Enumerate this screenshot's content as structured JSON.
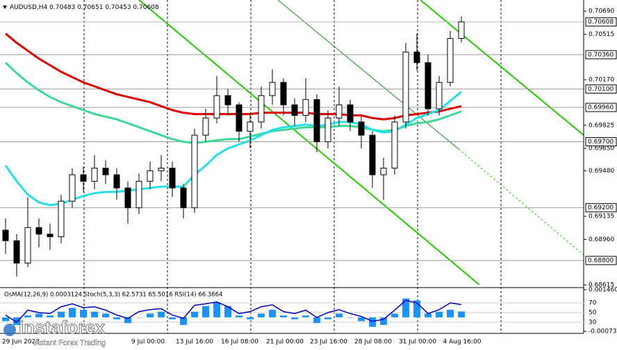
{
  "chart_data": {
    "type": "candlestick",
    "title": "AUDUSD,H4",
    "open": [
      0.6903,
      0.6895,
      0.6878,
      0.6905,
      0.69,
      0.6898,
      0.6925,
      0.6945,
      0.694,
      0.695,
      0.6945,
      0.6935,
      0.692,
      0.694,
      0.6948,
      0.695,
      0.6935,
      0.692,
      0.6975,
      0.6988,
      0.7005,
      0.6998,
      0.6978,
      0.6985,
      0.7005,
      0.7015,
      0.6998,
      0.699,
      0.7002,
      0.697,
      0.6988,
      0.6998,
      0.6985,
      0.6975,
      0.6945,
      0.695,
      0.6985,
      0.7038,
      0.703,
      0.6995,
      0.7015,
      0.70483
    ],
    "high": [
      0.6912,
      0.69,
      0.6928,
      0.6912,
      0.6908,
      0.693,
      0.695,
      0.6951,
      0.696,
      0.6956,
      0.695,
      0.694,
      0.6946,
      0.6955,
      0.696,
      0.6955,
      0.6938,
      0.698,
      0.6995,
      0.702,
      0.701,
      0.7,
      0.6992,
      0.7012,
      0.7025,
      0.7018,
      0.7003,
      0.7018,
      0.7006,
      0.6994,
      0.7012,
      0.7002,
      0.699,
      0.6978,
      0.6958,
      0.699,
      0.7045,
      0.7052,
      0.7036,
      0.702,
      0.7054,
      0.70651
    ],
    "low": [
      0.6885,
      0.6868,
      0.6875,
      0.689,
      0.6888,
      0.6893,
      0.692,
      0.6932,
      0.6934,
      0.6938,
      0.6926,
      0.6908,
      0.6915,
      0.6934,
      0.694,
      0.6928,
      0.6912,
      0.6916,
      0.697,
      0.6984,
      0.699,
      0.697,
      0.6965,
      0.698,
      0.6998,
      0.699,
      0.6982,
      0.6985,
      0.6962,
      0.6965,
      0.6982,
      0.6978,
      0.6965,
      0.6935,
      0.6926,
      0.6945,
      0.698,
      0.7024,
      0.699,
      0.699,
      0.7012,
      0.70453
    ],
    "close": [
      0.6895,
      0.6878,
      0.6905,
      0.69,
      0.6898,
      0.6925,
      0.6945,
      0.694,
      0.695,
      0.6945,
      0.6935,
      0.692,
      0.694,
      0.6948,
      0.695,
      0.6935,
      0.692,
      0.6975,
      0.6988,
      0.7005,
      0.6998,
      0.6978,
      0.6985,
      0.7005,
      0.7015,
      0.6998,
      0.699,
      0.7002,
      0.697,
      0.6988,
      0.6998,
      0.6985,
      0.6975,
      0.6945,
      0.695,
      0.6985,
      0.7038,
      0.703,
      0.6995,
      0.7015,
      0.70483,
      0.70608
    ],
    "series": [
      {
        "color": "#e00000",
        "values": [
          0.7052,
          0.7045,
          0.7039,
          0.7033,
          0.7028,
          0.7023,
          0.7019,
          0.7015,
          0.7012,
          0.7009,
          0.7006,
          0.7004,
          0.7002,
          0.7,
          0.6997,
          0.6994,
          0.6992,
          0.6991,
          0.6991,
          0.6991,
          0.6991,
          0.6991,
          0.6991,
          0.6992,
          0.6992,
          0.6992,
          0.6992,
          0.6992,
          0.6991,
          0.6991,
          0.6991,
          0.699,
          0.699,
          0.6988,
          0.6987,
          0.6988,
          0.699,
          0.6991,
          0.6992,
          0.6993,
          0.6995,
          0.6997
        ]
      },
      {
        "color": "#3cd896",
        "values": [
          0.703,
          0.7022,
          0.7015,
          0.7009,
          0.7004,
          0.7,
          0.6997,
          0.6994,
          0.6991,
          0.6989,
          0.6987,
          0.6984,
          0.6981,
          0.6978,
          0.6975,
          0.6972,
          0.697,
          0.6969,
          0.697,
          0.6971,
          0.6972,
          0.6972,
          0.6974,
          0.6976,
          0.6978,
          0.6979,
          0.698,
          0.6981,
          0.6981,
          0.6981,
          0.6982,
          0.6982,
          0.6981,
          0.6979,
          0.6978,
          0.6979,
          0.6982,
          0.6984,
          0.6985,
          0.6987,
          0.699,
          0.6993
        ]
      },
      {
        "color": "#22e0e8",
        "values": [
          0.6952,
          0.694,
          0.693,
          0.6924,
          0.6922,
          0.6923,
          0.6926,
          0.6929,
          0.6931,
          0.6932,
          0.6932,
          0.6933,
          0.6934,
          0.6935,
          0.6936,
          0.6936,
          0.6936,
          0.6945,
          0.6952,
          0.696,
          0.6965,
          0.6968,
          0.6971,
          0.6975,
          0.6979,
          0.6981,
          0.6982,
          0.6983,
          0.6982,
          0.6983,
          0.6985,
          0.6985,
          0.6983,
          0.6979,
          0.6977,
          0.6978,
          0.6983,
          0.6988,
          0.6991,
          0.6994,
          0.7001,
          0.7008
        ]
      }
    ],
    "ylim": [
      0.68605,
      0.70743
    ],
    "yticks": [
      {
        "value": 0.7069,
        "label": "0.70690"
      },
      {
        "value": 0.70515,
        "label": "0.70515"
      },
      {
        "value": 0.7017,
        "label": "0.70170"
      },
      {
        "value": 0.69825,
        "label": "0.69825"
      },
      {
        "value": 0.6965,
        "label": "0.69650"
      },
      {
        "value": 0.6948,
        "label": "0.69480"
      },
      {
        "value": 0.69135,
        "label": "0.69135"
      },
      {
        "value": 0.6896,
        "label": "0.68960"
      },
      {
        "value": 0.68615,
        "label": "0.68615"
      }
    ],
    "levels": [
      {
        "value": 0.7036,
        "label": "0.70360"
      },
      {
        "value": 0.701,
        "label": "0.70100"
      },
      {
        "value": 0.6996,
        "label": "0.69960"
      },
      {
        "value": 0.697,
        "label": "0.69700"
      },
      {
        "value": 0.692,
        "label": "0.69200"
      },
      {
        "value": 0.688,
        "label": "0.68800"
      }
    ],
    "x_labels": [
      "29 Jun 2023",
      "9 Jul 00:00",
      "13 Jul 16:00",
      "16 Jul 08:00",
      "21 Jul 00:00",
      "23 Jul 16:00",
      "28 Jul 08:00",
      "31 Jul 00:00",
      "4 Aug 16:00"
    ],
    "indicator": {
      "title": "OsMA(12,26,9) 0.0003124  Stoch(5,3,3) 62.5731 65.5016  RSI(14) 66.3664",
      "osma": [
        -0.0002,
        -0.0004,
        0.0001,
        0.0002,
        0.0001,
        0.0003,
        0.0005,
        0.0004,
        0.0003,
        0.0002,
        -0.0001,
        -0.0003,
        0,
        0.0002,
        0.0003,
        -0.0001,
        -0.0004,
        0.0003,
        0.0006,
        0.0008,
        0.0006,
        0.0001,
        -0.0001,
        0.0002,
        0.0004,
        0.0001,
        -0.0001,
        0.0001,
        -0.0003,
        -0.0001,
        0.0002,
        0,
        -0.0002,
        -0.0005,
        -0.0004,
        0.0002,
        0.001,
        0.0009,
        0.0002,
        0.0003,
        0.0004,
        0.0003124
      ],
      "osma_color": "#1e90ff",
      "ylim": [
        -0.000733,
        0.0014605
      ],
      "yticks": [
        0.0014605,
        -0.000733
      ],
      "rsi": [
        45,
        30,
        55,
        50,
        48,
        62,
        68,
        60,
        62,
        55,
        45,
        38,
        52,
        56,
        58,
        45,
        38,
        65,
        68,
        72,
        62,
        48,
        52,
        62,
        66,
        52,
        48,
        55,
        40,
        50,
        56,
        48,
        42,
        32,
        36,
        55,
        75,
        70,
        48,
        56,
        70,
        66.3664
      ],
      "rsi_color": "#0000c0",
      "rsi_lim": [
        0,
        100
      ],
      "rsi_ticks": [
        70,
        50,
        30
      ]
    },
    "watermark": {
      "brand": "instaforex",
      "tagline": "Instant Forex Trading"
    }
  }
}
